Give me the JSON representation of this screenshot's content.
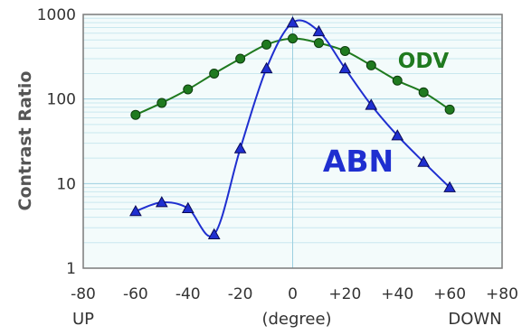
{
  "chart_data": {
    "type": "line",
    "title": "",
    "ylabel": "Contrast Ratio",
    "xlabel": "(degree)",
    "x_end_labels": {
      "left": "UP",
      "right": "DOWN"
    },
    "y_scale": "log",
    "ylim": [
      1,
      1000
    ],
    "xlim": [
      -80,
      80
    ],
    "y_ticks": [
      {
        "value": 1,
        "label": "1"
      },
      {
        "value": 10,
        "label": "10"
      },
      {
        "value": 100,
        "label": "100"
      },
      {
        "value": 1000,
        "label": "1000"
      }
    ],
    "x_ticks": [
      {
        "value": -80,
        "label": "-80"
      },
      {
        "value": -60,
        "label": "-60"
      },
      {
        "value": -40,
        "label": "-40"
      },
      {
        "value": -20,
        "label": "-20"
      },
      {
        "value": 0,
        "label": "0"
      },
      {
        "value": 20,
        "label": "+20"
      },
      {
        "value": 40,
        "label": "+40"
      },
      {
        "value": 60,
        "label": "+60"
      },
      {
        "value": 80,
        "label": "+80"
      }
    ],
    "grid": true,
    "series": [
      {
        "name": "ODV",
        "color": "#1f7a1f",
        "marker": "circle",
        "x": [
          -60,
          -50,
          -40,
          -30,
          -20,
          -10,
          0,
          10,
          20,
          30,
          40,
          50,
          60
        ],
        "y": [
          65,
          90,
          130,
          200,
          300,
          440,
          520,
          460,
          370,
          250,
          165,
          120,
          75
        ]
      },
      {
        "name": "ABN",
        "color": "#1f2fd0",
        "marker": "triangle",
        "x": [
          -60,
          -50,
          -40,
          -30,
          -20,
          -10,
          0,
          10,
          20,
          30,
          40,
          50,
          60
        ],
        "y": [
          4.7,
          6.0,
          5.1,
          2.5,
          26,
          230,
          800,
          630,
          230,
          85,
          37,
          18,
          9
        ]
      }
    ]
  }
}
